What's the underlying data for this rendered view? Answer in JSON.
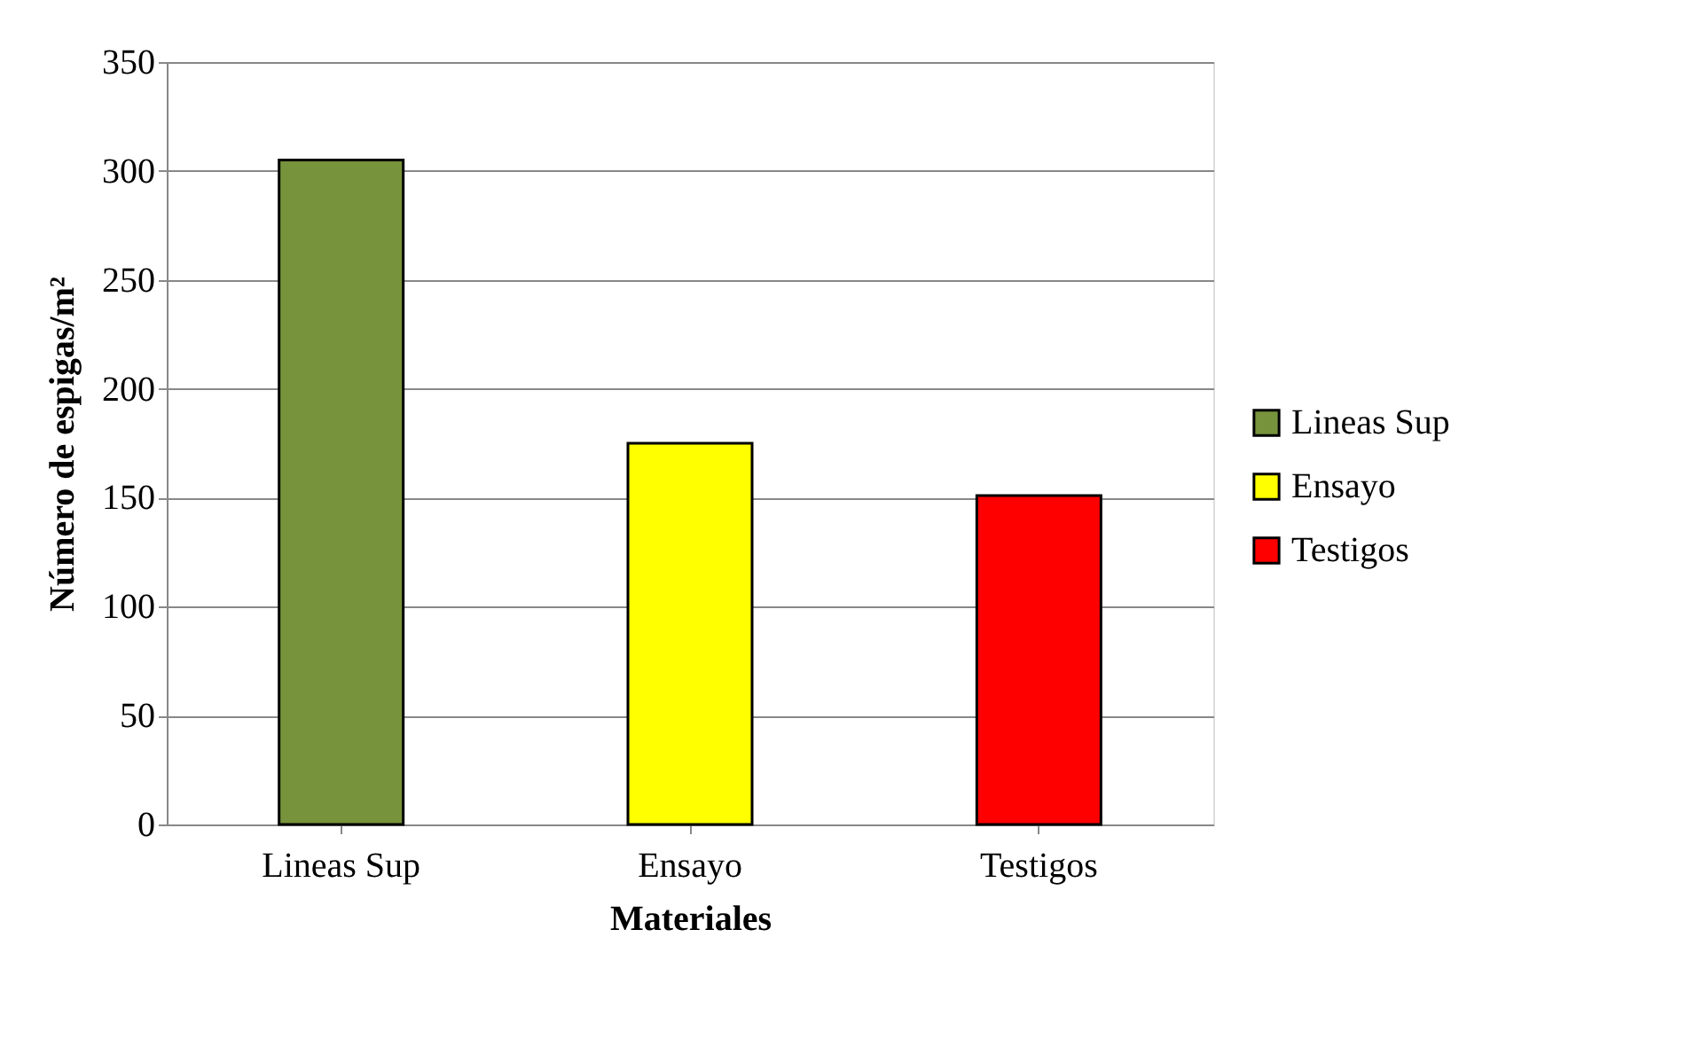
{
  "chart_data": {
    "type": "bar",
    "xlabel": "Materiales",
    "ylabel": "Número de espigas/m²",
    "categories": [
      "Lineas Sup",
      "Ensayo",
      "Testigos"
    ],
    "series": [
      {
        "name": "Lineas Sup",
        "color": "#77933c",
        "values": [
          305,
          null,
          null
        ]
      },
      {
        "name": "Ensayo",
        "color": "#ffff00",
        "values": [
          null,
          175,
          null
        ]
      },
      {
        "name": "Testigos",
        "color": "#ff0000",
        "values": [
          null,
          null,
          151
        ]
      }
    ],
    "ylim": [
      0,
      350
    ],
    "yticks": [
      0,
      50,
      100,
      150,
      200,
      250,
      300,
      350
    ],
    "grid": "y",
    "legend": "right"
  }
}
